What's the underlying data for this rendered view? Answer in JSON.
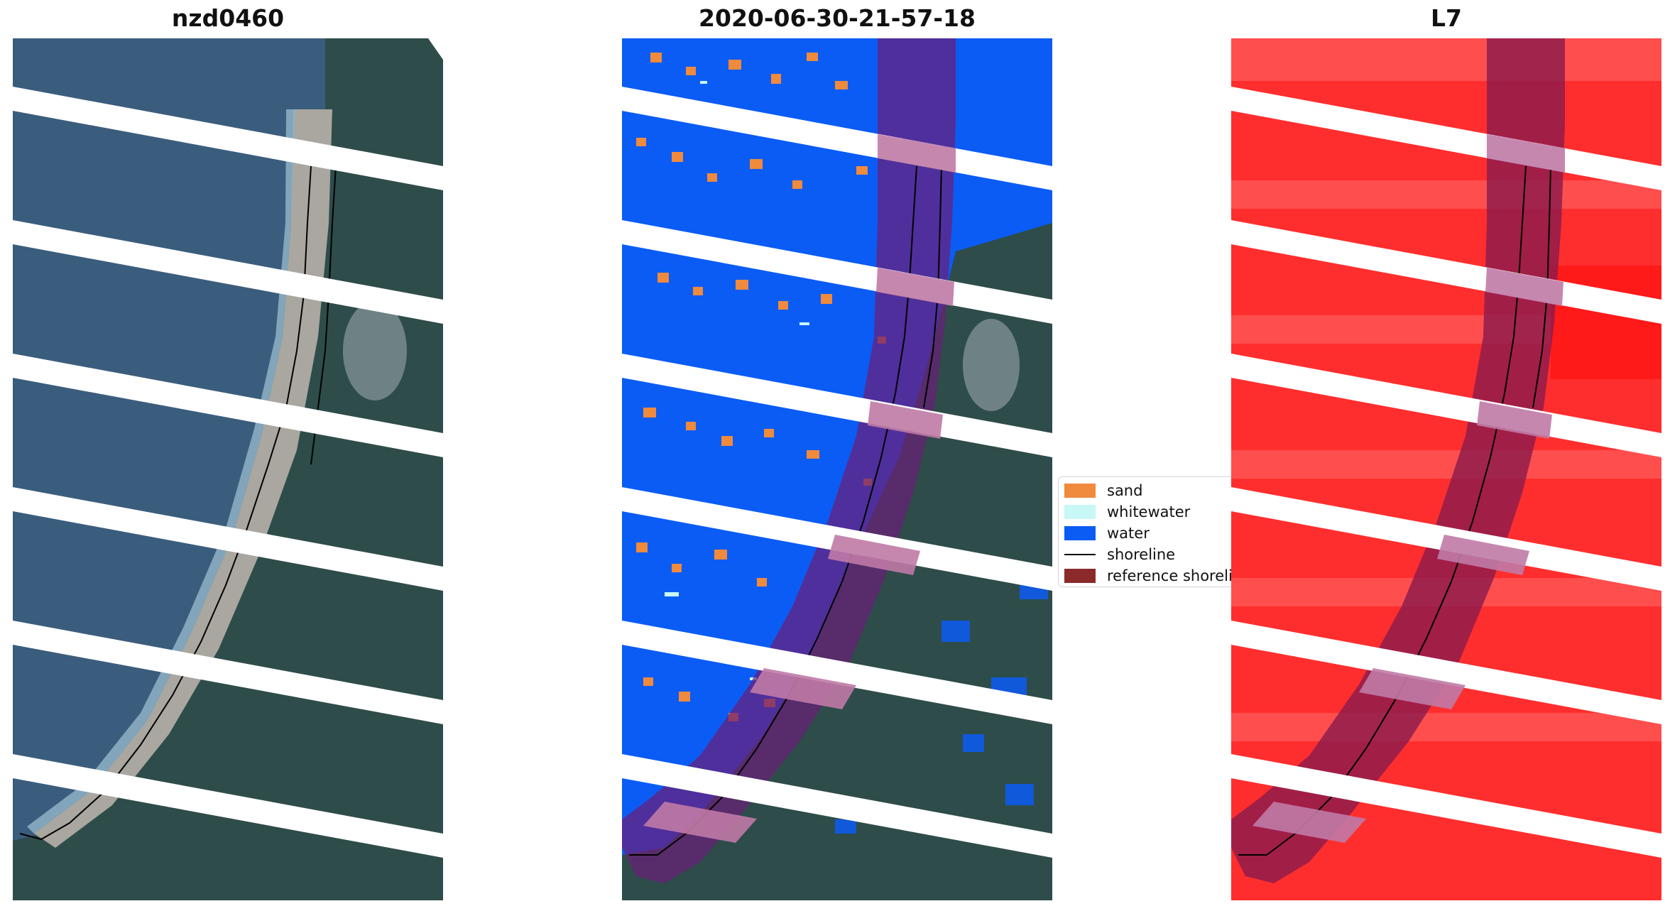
{
  "panels": [
    {
      "title": "nzd0460"
    },
    {
      "title": "2020-06-30-21-57-18"
    },
    {
      "title": "L7"
    }
  ],
  "legend": {
    "items": [
      {
        "label": "sand",
        "kind": "patch",
        "color": "#f08a3c"
      },
      {
        "label": "whitewater",
        "kind": "patch",
        "color": "#c8f7f7"
      },
      {
        "label": "water",
        "kind": "patch",
        "color": "#0b5cf5"
      },
      {
        "label": "shoreline",
        "kind": "line",
        "color": "#000000"
      },
      {
        "label": "reference shoreline",
        "kind": "patch",
        "color": "#8b2a2a"
      }
    ]
  },
  "colors": {
    "ocean": "#355778",
    "forest": "#2c4b48",
    "sand_beach": "#a7a6a0",
    "surf": "#8db3c9",
    "water_class": "#0b5cf5",
    "sand_class": "#f08a3c",
    "whitewater_class": "#c8f7f7",
    "reference_buffer": "#6a1f79",
    "l7_red": "#ff2a2a",
    "gap": "#ffffff"
  }
}
